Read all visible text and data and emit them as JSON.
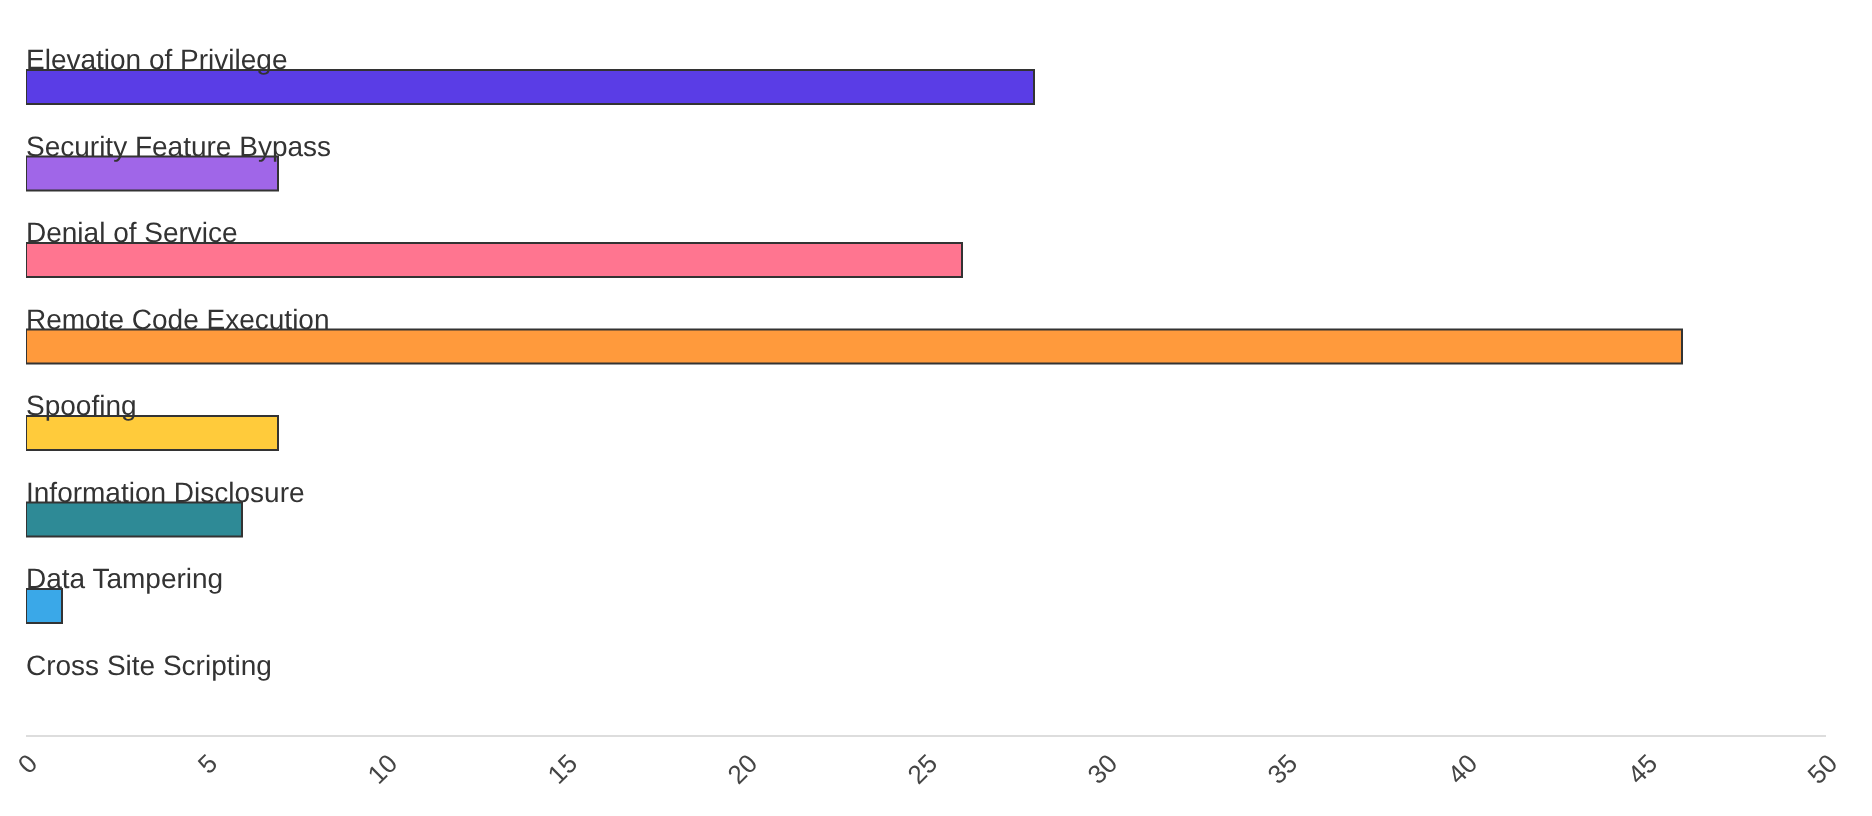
{
  "chart_data": {
    "type": "bar",
    "orientation": "horizontal",
    "categories": [
      "Elevation of Privilege",
      "Security Feature Bypass",
      "Denial of Service",
      "Remote Code Execution",
      "Spoofing",
      "Information Disclosure",
      "Data Tampering",
      "Cross Site Scripting"
    ],
    "values": [
      28,
      7,
      26,
      46,
      7,
      6,
      1,
      0
    ],
    "colors": [
      "#5a3de6",
      "#a066e8",
      "#ff7590",
      "#ff9a3c",
      "#ffcb3b",
      "#2e8a96",
      "#3aa8e8",
      "#9a9a9a"
    ],
    "xlim": [
      0,
      50
    ],
    "xticks": [
      0,
      5,
      10,
      15,
      20,
      25,
      30,
      35,
      40,
      45,
      50
    ],
    "grid": false,
    "legend": false
  }
}
